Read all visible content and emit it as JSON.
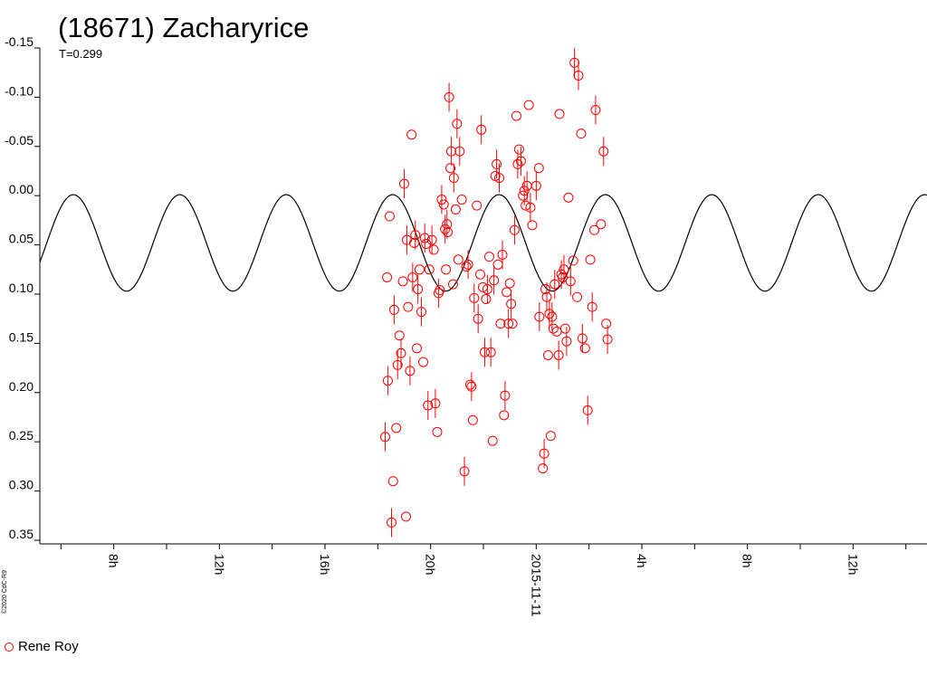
{
  "title": "(18671) Zacharyrice",
  "subtitle": "T=0.299",
  "copyright": "©2020 CdC-R9",
  "legend": {
    "label": "Rene Roy",
    "color": "#ff0000"
  },
  "chart_data": {
    "type": "scatter",
    "title": "(18671) Zacharyrice",
    "ylim": [
      -0.15,
      0.35
    ],
    "y_inverted": true,
    "y_ticks": [
      -0.15,
      -0.1,
      -0.05,
      0.0,
      0.05,
      0.1,
      0.15,
      0.2,
      0.25,
      0.3,
      0.35
    ],
    "y_tick_labels": [
      "-0.15",
      "-0.10",
      "-0.05",
      "0.00",
      "0.05",
      "0.10",
      "0.15",
      "0.20",
      "0.25",
      "0.30",
      "0.35"
    ],
    "xlim_hours": [
      5.2,
      38.8
    ],
    "x_tick_labels": [
      {
        "hour": 8,
        "label": "8h"
      },
      {
        "hour": 12,
        "label": "12h"
      },
      {
        "hour": 16,
        "label": "16h"
      },
      {
        "hour": 20,
        "label": "20h"
      },
      {
        "hour": 24,
        "label": "2015-11-11"
      },
      {
        "hour": 28,
        "label": "4h"
      },
      {
        "hour": 32,
        "label": "8h"
      },
      {
        "hour": 36,
        "label": "12h"
      }
    ],
    "fit_curve": {
      "period_hours": 4.03,
      "mean": 0.048,
      "amplitude": 0.049,
      "peak_hour": 6.47
    },
    "series": [
      {
        "name": "Rene Roy",
        "color": "#ff0000",
        "marker": "open-circle",
        "points": [
          [
            18.28,
            0.245
          ],
          [
            18.35,
            0.083
          ],
          [
            18.38,
            0.188
          ],
          [
            18.45,
            0.021
          ],
          [
            18.52,
            0.332
          ],
          [
            18.58,
            0.29
          ],
          [
            18.62,
            0.116
          ],
          [
            18.7,
            0.236
          ],
          [
            18.75,
            0.172
          ],
          [
            18.82,
            0.142
          ],
          [
            18.88,
            0.16
          ],
          [
            18.95,
            0.087
          ],
          [
            19.0,
            -0.012
          ],
          [
            19.07,
            0.326
          ],
          [
            19.1,
            0.045
          ],
          [
            19.15,
            0.113
          ],
          [
            19.22,
            0.178
          ],
          [
            19.28,
            -0.062
          ],
          [
            19.32,
            0.083
          ],
          [
            19.38,
            0.048
          ],
          [
            19.42,
            0.04
          ],
          [
            19.48,
            0.155
          ],
          [
            19.52,
            0.095
          ],
          [
            19.58,
            0.075
          ],
          [
            19.65,
            0.118
          ],
          [
            19.72,
            0.169
          ],
          [
            19.78,
            0.043
          ],
          [
            19.83,
            0.049
          ],
          [
            19.9,
            0.213
          ],
          [
            19.95,
            0.075
          ],
          [
            20.05,
            0.045
          ],
          [
            20.12,
            0.055
          ],
          [
            20.18,
            0.211
          ],
          [
            20.25,
            0.24
          ],
          [
            20.3,
            0.099
          ],
          [
            20.35,
            0.096
          ],
          [
            20.42,
            0.004
          ],
          [
            20.5,
            0.009
          ],
          [
            20.55,
            0.034
          ],
          [
            20.58,
            0.075
          ],
          [
            20.62,
            0.029
          ],
          [
            20.65,
            0.037
          ],
          [
            20.7,
            -0.1
          ],
          [
            20.75,
            -0.028
          ],
          [
            20.78,
            -0.045
          ],
          [
            20.85,
            0.09
          ],
          [
            20.88,
            -0.018
          ],
          [
            20.95,
            0.014
          ],
          [
            21.0,
            -0.073
          ],
          [
            21.05,
            0.065
          ],
          [
            21.1,
            -0.045
          ],
          [
            21.18,
            0.004
          ],
          [
            21.28,
            0.28
          ],
          [
            21.35,
            0.072
          ],
          [
            21.42,
            0.07
          ],
          [
            21.5,
            0.192
          ],
          [
            21.55,
            0.194
          ],
          [
            21.6,
            0.228
          ],
          [
            21.65,
            0.104
          ],
          [
            21.75,
            0.01
          ],
          [
            21.8,
            0.125
          ],
          [
            21.88,
            0.08
          ],
          [
            21.92,
            -0.067
          ],
          [
            21.98,
            0.093
          ],
          [
            22.05,
            0.159
          ],
          [
            22.1,
            0.105
          ],
          [
            22.15,
            0.095
          ],
          [
            22.22,
            0.062
          ],
          [
            22.28,
            0.159
          ],
          [
            22.35,
            0.249
          ],
          [
            22.4,
            0.086
          ],
          [
            22.45,
            -0.02
          ],
          [
            22.5,
            -0.032
          ],
          [
            22.55,
            0.07
          ],
          [
            22.6,
            -0.018
          ],
          [
            22.65,
            0.13
          ],
          [
            22.72,
            0.06
          ],
          [
            22.78,
            0.223
          ],
          [
            22.82,
            0.203
          ],
          [
            22.88,
            0.098
          ],
          [
            22.95,
            0.13
          ],
          [
            23.0,
            0.089
          ],
          [
            23.05,
            0.11
          ],
          [
            23.1,
            0.13
          ],
          [
            23.18,
            0.035
          ],
          [
            23.25,
            -0.081
          ],
          [
            23.3,
            -0.032
          ],
          [
            23.35,
            -0.047
          ],
          [
            23.42,
            -0.035
          ],
          [
            23.5,
            0.0
          ],
          [
            23.55,
            -0.005
          ],
          [
            23.6,
            0.01
          ],
          [
            23.65,
            -0.01
          ],
          [
            23.72,
            -0.092
          ],
          [
            23.78,
            0.012
          ],
          [
            23.85,
            0.03
          ],
          [
            24.0,
            -0.01
          ],
          [
            24.1,
            -0.028
          ],
          [
            24.12,
            0.123
          ],
          [
            24.25,
            0.277
          ],
          [
            24.3,
            0.262
          ],
          [
            24.35,
            0.095
          ],
          [
            24.4,
            0.103
          ],
          [
            24.45,
            0.162
          ],
          [
            24.5,
            0.12
          ],
          [
            24.55,
            0.244
          ],
          [
            24.6,
            0.123
          ],
          [
            24.65,
            0.135
          ],
          [
            24.7,
            0.09
          ],
          [
            24.78,
            0.138
          ],
          [
            24.85,
            0.162
          ],
          [
            24.88,
            -0.083
          ],
          [
            24.95,
            0.08
          ],
          [
            25.0,
            0.083
          ],
          [
            25.05,
            0.075
          ],
          [
            25.1,
            0.135
          ],
          [
            25.15,
            0.148
          ],
          [
            25.22,
            0.002
          ],
          [
            25.3,
            0.087
          ],
          [
            25.4,
            0.066
          ],
          [
            25.45,
            -0.135
          ],
          [
            25.55,
            0.103
          ],
          [
            25.6,
            -0.122
          ],
          [
            25.7,
            -0.063
          ],
          [
            25.75,
            0.145
          ],
          [
            25.85,
            0.155
          ],
          [
            25.95,
            0.218
          ],
          [
            26.05,
            0.065
          ],
          [
            26.12,
            0.113
          ],
          [
            26.2,
            0.035
          ],
          [
            26.25,
            -0.087
          ],
          [
            26.45,
            0.029
          ],
          [
            26.55,
            -0.045
          ],
          [
            26.65,
            0.13
          ],
          [
            26.7,
            0.146
          ]
        ]
      }
    ]
  }
}
